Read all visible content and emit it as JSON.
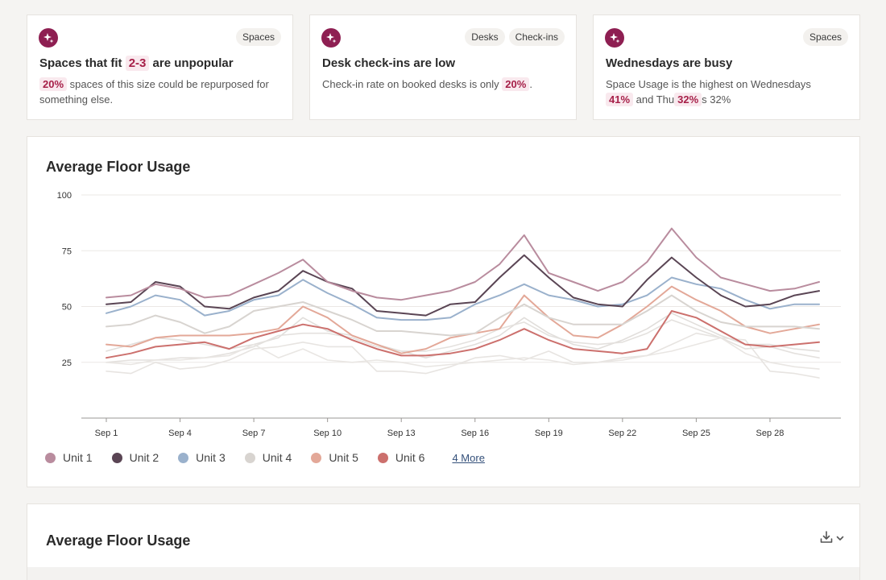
{
  "insights": [
    {
      "tags": [
        "Spaces"
      ],
      "title_pre": "Spaces that fit ",
      "title_hl": "2-3",
      "title_post": " are unpopular",
      "body_hl1": "20%",
      "body_text1": " spaces of this size could be repurposed for something else."
    },
    {
      "tags": [
        "Desks",
        "Check-ins"
      ],
      "title": "Desk check-ins are low",
      "body_text1": "Check-in rate on booked desks is only ",
      "body_hl1": "20%",
      "body_text2": "."
    },
    {
      "tags": [
        "Spaces"
      ],
      "title": "Wednesdays are busy",
      "body_text1": "Space Usage is the highest on Wednesdays",
      "body_hl1": "41%",
      "body_text2": " and Thu",
      "body_hl2": "32%",
      "body_text3": "s 32%"
    }
  ],
  "chart_section": {
    "title": "Average Floor Usage",
    "more_label": "4 More"
  },
  "table_section": {
    "title": "Average Floor Usage"
  },
  "chart_data": {
    "type": "line",
    "title": "Average Floor Usage",
    "ylim": [
      0,
      100
    ],
    "yticks": [
      25,
      50,
      75,
      100
    ],
    "x": [
      "Sep 1",
      "Sep 2",
      "Sep 3",
      "Sep 4",
      "Sep 5",
      "Sep 6",
      "Sep 7",
      "Sep 8",
      "Sep 9",
      "Sep 10",
      "Sep 11",
      "Sep 12",
      "Sep 13",
      "Sep 14",
      "Sep 15",
      "Sep 16",
      "Sep 17",
      "Sep 18",
      "Sep 19",
      "Sep 20",
      "Sep 21",
      "Sep 22",
      "Sep 23",
      "Sep 24",
      "Sep 25",
      "Sep 26",
      "Sep 27",
      "Sep 28",
      "Sep 29",
      "Sep 30"
    ],
    "xtick_labels": [
      "Sep 1",
      "Sep 4",
      "Sep 7",
      "Sep 10",
      "Sep 13",
      "Sep 16",
      "Sep 19",
      "Sep 22",
      "Sep 25",
      "Sep 28"
    ],
    "series": [
      {
        "name": "Unit 1",
        "color": "#b98c9e",
        "visible_in_legend": true,
        "values": [
          54,
          55,
          60,
          58,
          54,
          55,
          60,
          65,
          71,
          61,
          57,
          54,
          53,
          55,
          57,
          61,
          69,
          82,
          65,
          61,
          57,
          61,
          70,
          85,
          72,
          63,
          60,
          57,
          58,
          61
        ]
      },
      {
        "name": "Unit 2",
        "color": "#5a4554",
        "visible_in_legend": true,
        "values": [
          51,
          52,
          61,
          59,
          50,
          49,
          54,
          57,
          66,
          61,
          58,
          48,
          47,
          46,
          51,
          52,
          63,
          73,
          63,
          54,
          51,
          50,
          62,
          72,
          63,
          55,
          50,
          51,
          55,
          57
        ]
      },
      {
        "name": "Unit 3",
        "color": "#9ab1cc",
        "visible_in_legend": true,
        "values": [
          47,
          50,
          55,
          53,
          46,
          48,
          53,
          55,
          62,
          56,
          51,
          45,
          44,
          44,
          45,
          51,
          55,
          60,
          55,
          53,
          50,
          51,
          55,
          63,
          60,
          58,
          53,
          49,
          51,
          51
        ]
      },
      {
        "name": "Unit 4",
        "color": "#d8d4d0",
        "visible_in_legend": true,
        "values": [
          41,
          42,
          46,
          43,
          38,
          41,
          48,
          50,
          52,
          48,
          44,
          39,
          39,
          38,
          37,
          38,
          45,
          51,
          45,
          42,
          42,
          42,
          48,
          55,
          48,
          43,
          41,
          41,
          41,
          40
        ]
      },
      {
        "name": "Unit 5",
        "color": "#e3a898",
        "visible_in_legend": true,
        "values": [
          33,
          32,
          36,
          37,
          37,
          37,
          38,
          40,
          50,
          45,
          37,
          33,
          29,
          31,
          36,
          38,
          40,
          55,
          45,
          37,
          36,
          42,
          50,
          59,
          53,
          48,
          41,
          38,
          40,
          42
        ]
      },
      {
        "name": "Unit 6",
        "color": "#cc706d",
        "visible_in_legend": true,
        "values": [
          27,
          29,
          32,
          33,
          34,
          31,
          36,
          39,
          42,
          40,
          35,
          31,
          28,
          28,
          29,
          31,
          35,
          40,
          35,
          31,
          30,
          29,
          31,
          48,
          45,
          39,
          33,
          32,
          33,
          34
        ]
      },
      {
        "name": "",
        "color": "#e1dedb",
        "visible_in_legend": false,
        "values": [
          30,
          33,
          36,
          35,
          33,
          31,
          33,
          36,
          45,
          39,
          37,
          33,
          30,
          27,
          30,
          33,
          37,
          45,
          38,
          33,
          31,
          35,
          40,
          47,
          42,
          37,
          33,
          33,
          31,
          30
        ]
      },
      {
        "name": "",
        "color": "#e4e1de",
        "visible_in_legend": false,
        "values": [
          25,
          26,
          26,
          27,
          27,
          29,
          32,
          37,
          38,
          38,
          36,
          32,
          30,
          30,
          32,
          35,
          40,
          43,
          37,
          34,
          33,
          34,
          38,
          44,
          40,
          36,
          31,
          32,
          29,
          27
        ]
      },
      {
        "name": "",
        "color": "#e7e4e1",
        "visible_in_legend": false,
        "values": [
          21,
          20,
          25,
          22,
          23,
          26,
          31,
          32,
          34,
          32,
          32,
          21,
          21,
          20,
          23,
          27,
          28,
          26,
          30,
          25,
          25,
          27,
          28,
          33,
          38,
          36,
          35,
          21,
          20,
          18
        ]
      },
      {
        "name": "",
        "color": "#e9e6e3",
        "visible_in_legend": false,
        "values": [
          25,
          24,
          26,
          26,
          27,
          28,
          33,
          27,
          31,
          26,
          25,
          26,
          25,
          23,
          24,
          25,
          26,
          27,
          26,
          24,
          25,
          26,
          28,
          30,
          33,
          36,
          29,
          25,
          23,
          22
        ]
      }
    ]
  }
}
